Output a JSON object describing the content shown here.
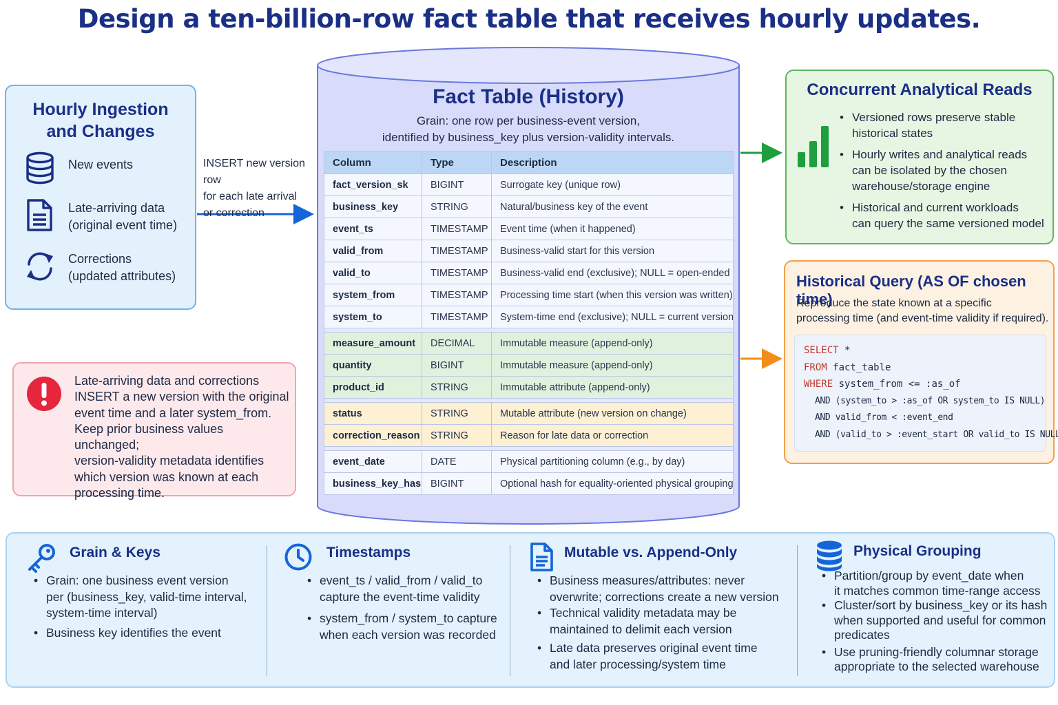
{
  "title": "Design a ten-billion-row fact table that receives hourly updates.",
  "ingestion": {
    "heading_line1": "Hourly Ingestion",
    "heading_line2": "and Changes",
    "items": [
      {
        "icon": "database-icon",
        "line1": "New events",
        "line2": ""
      },
      {
        "icon": "document-icon",
        "line1": "Late-arriving data",
        "line2": "(original event time)"
      },
      {
        "icon": "refresh-icon",
        "line1": "Corrections",
        "line2": "(updated attributes)"
      }
    ]
  },
  "insert_label": [
    "INSERT new version row",
    "for each late arrival",
    "or correction"
  ],
  "warning": {
    "icon": "exclamation-icon",
    "lines": [
      "Late-arriving data and corrections",
      "INSERT a new version with the original",
      "event time and a later system_from.",
      "Keep prior business values unchanged;",
      "version-validity metadata identifies",
      "which version was known at each",
      "processing time."
    ]
  },
  "fact_table": {
    "title": "Fact Table (History)",
    "subtitle_line1": "Grain: one row per business-event version,",
    "subtitle_line2": "identified by business_key plus version-validity intervals.",
    "headers": [
      "Column",
      "Type",
      "Description"
    ],
    "groups": [
      {
        "kind": "base",
        "rows": [
          [
            "fact_version_sk",
            "BIGINT",
            "Surrogate key (unique row)"
          ],
          [
            "business_key",
            "STRING",
            "Natural/business key of the event"
          ],
          [
            "event_ts",
            "TIMESTAMP",
            "Event time (when it happened)"
          ],
          [
            "valid_from",
            "TIMESTAMP",
            "Business-valid start for this version"
          ],
          [
            "valid_to",
            "TIMESTAMP",
            "Business-valid end (exclusive); NULL = open-ended"
          ],
          [
            "system_from",
            "TIMESTAMP",
            "Processing time start (when this version was written)"
          ],
          [
            "system_to",
            "TIMESTAMP",
            "System-time end (exclusive); NULL = current version"
          ]
        ]
      },
      {
        "kind": "imm",
        "rows": [
          [
            "measure_amount",
            "DECIMAL",
            "Immutable measure (append-only)"
          ],
          [
            "quantity",
            "BIGINT",
            "Immutable measure (append-only)"
          ],
          [
            "product_id",
            "STRING",
            "Immutable attribute (append-only)"
          ]
        ]
      },
      {
        "kind": "mut",
        "rows": [
          [
            "status",
            "STRING",
            "Mutable attribute (new version on change)"
          ],
          [
            "correction_reason",
            "STRING",
            "Reason for late data or correction"
          ]
        ]
      },
      {
        "kind": "base",
        "rows": [
          [
            "event_date",
            "DATE",
            "Physical partitioning column (e.g., by day)"
          ],
          [
            "business_key_hash",
            "BIGINT",
            "Optional hash for equality-oriented physical grouping"
          ]
        ]
      }
    ]
  },
  "reads": {
    "heading": "Concurrent Analytical Reads",
    "icon": "bar-chart-icon",
    "bullets": [
      [
        "Versioned rows preserve stable",
        "historical states"
      ],
      [
        "Hourly writes and analytical reads",
        "can be isolated by the chosen",
        "warehouse/storage engine"
      ],
      [
        "Historical and current workloads",
        "can query the same versioned model"
      ]
    ]
  },
  "query": {
    "heading": "Historical Query (AS OF chosen time)",
    "desc_line1": "Reproduce the state known at a specific",
    "desc_line2": "processing time (and event-time validity if required).",
    "code": [
      {
        "kw": "SELECT",
        "rest": " *",
        "indent": false
      },
      {
        "kw": "FROM",
        "rest": " fact_table",
        "indent": false
      },
      {
        "kw": "WHERE",
        "rest": " system_from <= :as_of",
        "indent": false
      },
      {
        "kw": "",
        "rest": "AND (system_to > :as_of OR system_to IS NULL)",
        "indent": true
      },
      {
        "kw": "",
        "rest": "AND valid_from < :event_end",
        "indent": true
      },
      {
        "kw": "",
        "rest": "AND (valid_to > :event_start OR valid_to IS NULL);",
        "indent": true
      }
    ]
  },
  "bottom": [
    {
      "heading": "Grain & Keys",
      "icon": "key-icon",
      "bullets": [
        [
          "Grain: one business event version",
          "per (business_key, valid-time interval,",
          "system-time interval)"
        ],
        [
          "Business key identifies the event"
        ]
      ]
    },
    {
      "heading": "Timestamps",
      "icon": "clock-icon",
      "bullets": [
        [
          "event_ts / valid_from / valid_to",
          "capture the event-time validity"
        ],
        [
          "system_from / system_to capture",
          "when each version was recorded"
        ]
      ]
    },
    {
      "heading": "Mutable vs. Append-Only",
      "icon": "document-icon",
      "bullets": [
        [
          "Business measures/attributes: never",
          "overwrite; corrections create a new version"
        ],
        [
          "Technical validity metadata may be",
          "maintained to delimit each version"
        ],
        [
          "Late data preserves original event time",
          "and later processing/system time"
        ]
      ]
    },
    {
      "heading": "Physical Grouping",
      "icon": "database-icon",
      "bullets": [
        [
          "Partition/group by event_date when",
          "it matches common time-range access"
        ],
        [
          "Cluster/sort by business_key or its hash",
          "when supported and useful for common",
          "predicates"
        ],
        [
          "Use pruning-friendly columnar storage",
          "appropriate to the selected warehouse"
        ]
      ]
    }
  ],
  "colors": {
    "title": "#1a2f86",
    "ingest_bg": "#e3f1fd",
    "warn_bg": "#fde9ec",
    "warn_icon": "#e5263c",
    "cylinder": "#d8dcfa",
    "immutable_rows": "#e0f2dd",
    "mutable_rows": "#fdf0d3",
    "reads_bg": "#e6f6e2",
    "query_bg": "#fdf1e2",
    "arrow_blue": "#1565d8",
    "arrow_green": "#1e9e3e",
    "arrow_orange": "#f28c1a",
    "sql_keyword": "#c0392b"
  }
}
